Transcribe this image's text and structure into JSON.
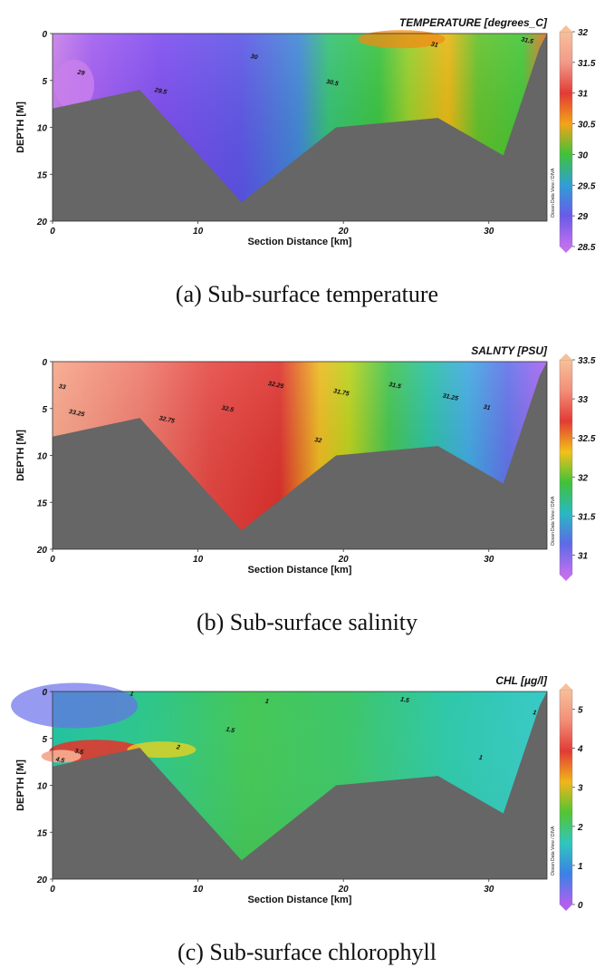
{
  "chart_data": [
    {
      "type": "heatmap",
      "title": "TEMPERATURE [degrees_C]",
      "caption": "(a)  Sub-surface temperature",
      "xlabel": "Section Distance [km]",
      "ylabel": "DEPTH [M]",
      "credit": "Ocean Data View / DIVA",
      "xlim": [
        0,
        34
      ],
      "ylim": [
        20,
        0
      ],
      "xticks": [
        "0",
        "10",
        "20",
        "30"
      ],
      "yticks": [
        "0",
        "5",
        "10",
        "15",
        "20"
      ],
      "colorbar": {
        "min": 28.5,
        "max": 32,
        "ticks": [
          "32",
          "31.5",
          "31",
          "30.5",
          "30",
          "29.5",
          "29",
          "28.5"
        ]
      },
      "bottom_profile": [
        [
          0,
          8
        ],
        [
          6,
          6
        ],
        [
          13,
          18
        ],
        [
          19.5,
          10
        ],
        [
          26.5,
          9
        ],
        [
          31,
          13
        ],
        [
          33.5,
          1.5
        ],
        [
          34,
          0
        ]
      ],
      "contour_labels": [
        {
          "text": "29",
          "x": 1.7,
          "y": 4.3
        },
        {
          "text": "29.5",
          "x": 7,
          "y": 6.2
        },
        {
          "text": "30",
          "x": 13.6,
          "y": 2.6
        },
        {
          "text": "30.5",
          "x": 18.8,
          "y": 5.3
        },
        {
          "text": "31",
          "x": 26,
          "y": 1.3
        },
        {
          "text": "31.5",
          "x": 32.2,
          "y": 0.8
        }
      ]
    },
    {
      "type": "heatmap",
      "title": "SALNTY [PSU]",
      "caption": "(b)  Sub-surface salinity",
      "xlabel": "Section Distance [km]",
      "ylabel": "DEPTH [M]",
      "credit": "Ocean Data View / DIVA",
      "xlim": [
        0,
        34
      ],
      "ylim": [
        20,
        0
      ],
      "xticks": [
        "0",
        "10",
        "20",
        "30"
      ],
      "yticks": [
        "0",
        "5",
        "10",
        "15",
        "20"
      ],
      "colorbar": {
        "min": 30.75,
        "max": 33.5,
        "ticks": [
          "33.5",
          "33",
          "32.5",
          "32",
          "31.5",
          "31"
        ]
      },
      "bottom_profile": [
        [
          0,
          8
        ],
        [
          6,
          6
        ],
        [
          13,
          18
        ],
        [
          19.5,
          10
        ],
        [
          26.5,
          9
        ],
        [
          31,
          13
        ],
        [
          33.5,
          1.5
        ],
        [
          34,
          0
        ]
      ],
      "contour_labels": [
        {
          "text": "33",
          "x": 0.4,
          "y": 2.8
        },
        {
          "text": "33.25",
          "x": 1.1,
          "y": 5.5
        },
        {
          "text": "32.75",
          "x": 7.3,
          "y": 6.2
        },
        {
          "text": "32.5",
          "x": 11.6,
          "y": 5.1
        },
        {
          "text": "32.25",
          "x": 14.8,
          "y": 2.5
        },
        {
          "text": "31.75",
          "x": 19.3,
          "y": 3.3
        },
        {
          "text": "32",
          "x": 18,
          "y": 8.5
        },
        {
          "text": "31.5",
          "x": 23.1,
          "y": 2.6
        },
        {
          "text": "31.25",
          "x": 26.8,
          "y": 3.8
        },
        {
          "text": "31",
          "x": 29.6,
          "y": 5
        }
      ]
    },
    {
      "type": "heatmap",
      "title": "CHL [µg/l]",
      "caption": "(c)  Sub-surface chlorophyll",
      "xlabel": "Section Distance [km]",
      "ylabel": "DEPTH [M]",
      "credit": "Ocean Data View / DIVA",
      "xlim": [
        0,
        34
      ],
      "ylim": [
        20,
        0
      ],
      "xticks": [
        "0",
        "10",
        "20",
        "30"
      ],
      "yticks": [
        "0",
        "5",
        "10",
        "15",
        "20"
      ],
      "colorbar": {
        "min": 0,
        "max": 5.5,
        "ticks": [
          "5",
          "4",
          "3",
          "2",
          "1",
          "0"
        ]
      },
      "bottom_profile": [
        [
          0,
          8
        ],
        [
          6,
          6
        ],
        [
          13,
          18
        ],
        [
          19.5,
          10
        ],
        [
          26.5,
          9
        ],
        [
          31,
          13
        ],
        [
          33.5,
          1.5
        ],
        [
          34,
          0
        ]
      ],
      "contour_labels": [
        {
          "text": "1",
          "x": 5.3,
          "y": 0.4
        },
        {
          "text": "1",
          "x": 14.6,
          "y": 1.2
        },
        {
          "text": "1.5",
          "x": 23.9,
          "y": 1
        },
        {
          "text": "1.5",
          "x": 11.9,
          "y": 4.2
        },
        {
          "text": "2",
          "x": 8.5,
          "y": 6.1
        },
        {
          "text": "3.5",
          "x": 1.5,
          "y": 6.5
        },
        {
          "text": "4.5",
          "x": 0.2,
          "y": 7.4
        },
        {
          "text": "1",
          "x": 29.3,
          "y": 7.2
        },
        {
          "text": "1",
          "x": 33,
          "y": 2.4
        }
      ]
    }
  ]
}
